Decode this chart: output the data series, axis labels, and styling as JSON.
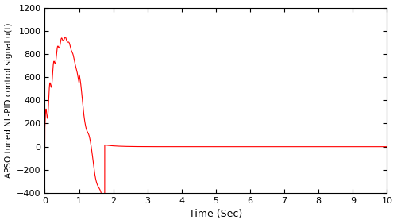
{
  "title": "",
  "xlabel": "Time (Sec)",
  "ylabel": "APSO tuned NL-PID control signal u(t)",
  "xlim": [
    0,
    10
  ],
  "ylim": [
    -400,
    1200
  ],
  "xticks": [
    0,
    1,
    2,
    3,
    4,
    5,
    6,
    7,
    8,
    9,
    10
  ],
  "yticks": [
    -400,
    -200,
    0,
    200,
    400,
    600,
    800,
    1000,
    1200
  ],
  "line_color": "#ff0000",
  "line_width": 0.8,
  "figsize": [
    5.0,
    2.82
  ],
  "dpi": 100
}
